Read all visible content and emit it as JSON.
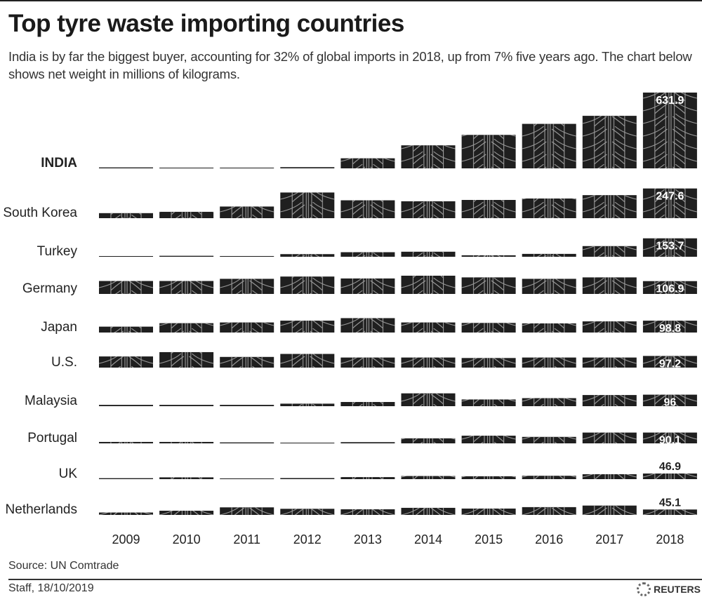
{
  "header": {
    "title": "Top tyre waste importing countries",
    "subtitle": "India is by far the biggest buyer, accounting for 32% of global imports in 2018, up from 7% five years ago. The chart below shows net weight in millions of kilograms."
  },
  "footer": {
    "source": "Source: UN Comtrade",
    "credit": "Staff,  18/10/2019",
    "logo_text": "REUTERS"
  },
  "colors": {
    "bar": "#1f1f1f",
    "tread": "#9a9a9a",
    "label_inside": "#ffffff",
    "label_outside": "#222222"
  },
  "chart_data": {
    "type": "bar",
    "subtype": "small-multiples rows (one bar row per country)",
    "unit": "net weight, millions of kilograms",
    "categories": [
      "2009",
      "2010",
      "2011",
      "2012",
      "2013",
      "2014",
      "2015",
      "2016",
      "2017",
      "2018"
    ],
    "highlight": "INDIA",
    "labelled_year": "2018",
    "series": [
      {
        "name": "INDIA",
        "values": [
          8,
          6,
          6,
          10,
          84,
          192,
          279,
          371,
          438,
          631.9
        ]
      },
      {
        "name": "South Korea",
        "values": [
          42,
          53,
          97,
          214,
          149,
          141,
          152,
          164,
          192,
          247.6
        ]
      },
      {
        "name": "Turkey",
        "values": [
          2,
          8,
          6,
          22,
          38,
          42,
          12,
          24,
          89,
          153.7
        ]
      },
      {
        "name": "Germany",
        "values": [
          108,
          108,
          126,
          145,
          129,
          152,
          138,
          126,
          138,
          106.9
        ]
      },
      {
        "name": "Japan",
        "values": [
          49,
          78,
          84,
          99,
          120,
          84,
          80,
          76,
          93,
          98.8
        ]
      },
      {
        "name": "U.S.",
        "values": [
          93,
          129,
          89,
          114,
          84,
          84,
          80,
          84,
          84,
          97.2
        ]
      },
      {
        "name": "Malaysia",
        "values": [
          11,
          11,
          11,
          21,
          35,
          107,
          56,
          67,
          93,
          96
        ]
      },
      {
        "name": "Portugal",
        "values": [
          12,
          12,
          8,
          2,
          10,
          42,
          64,
          54,
          90,
          90.1
        ]
      },
      {
        "name": "UK",
        "values": [
          8,
          15,
          6,
          9,
          17,
          26,
          24,
          28,
          41,
          46.9
        ]
      },
      {
        "name": "Netherlands",
        "values": [
          20,
          35,
          63,
          51,
          47,
          59,
          53,
          65,
          78,
          45.1
        ]
      }
    ],
    "value_labels": [
      "631.9",
      "247.6",
      "153.7",
      "106.9",
      "98.8",
      "97.2",
      "96",
      "90.1",
      "46.9",
      "45.1"
    ],
    "grid": false,
    "legend": "none"
  }
}
